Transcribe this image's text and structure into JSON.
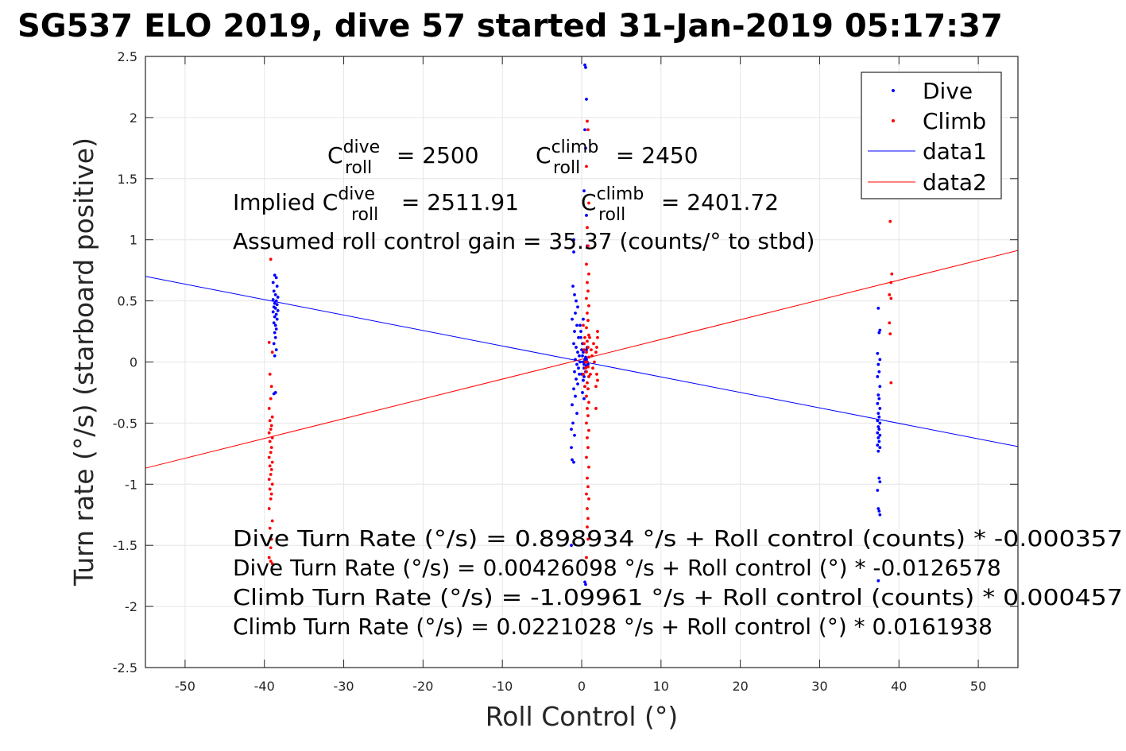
{
  "chart_data": {
    "type": "scatter",
    "title": "SG537 ELO 2019, dive 57 started 31-Jan-2019 05:17:37",
    "xlabel": "Roll Control (°)",
    "ylabel": "Turn rate (°/s) (starboard positive)",
    "xlim": [
      -55,
      55
    ],
    "ylim": [
      -2.5,
      2.5
    ],
    "xticks": [
      -50,
      -40,
      -30,
      -20,
      -10,
      0,
      10,
      20,
      30,
      40,
      50
    ],
    "yticks": [
      2.5,
      2,
      1.5,
      1,
      0.5,
      0,
      -0.5,
      -1,
      -1.5,
      -2,
      -2.5
    ],
    "grid": true,
    "legend_position": "top-right",
    "legend": [
      "Dive",
      "Climb",
      "data1",
      "data2"
    ],
    "colors": {
      "dive": "#0000ff",
      "climb": "#ff0000"
    },
    "annotations": {
      "c_dive": {
        "base": "C",
        "sup": "dive",
        "sub": "roll",
        "tail": " = 2500"
      },
      "c_climb": {
        "base": "C",
        "sup": "climb",
        "sub": "roll",
        "tail": " = 2450"
      },
      "implied_dive": {
        "prefix": "Implied C",
        "sup": "dive",
        "sub": "roll",
        "tail": " = 2511.91"
      },
      "implied_climb": {
        "base": "C",
        "sup": "climb",
        "sub": "roll",
        "tail": " = 2401.72"
      },
      "gain": "Assumed roll control gain = 35.37 (counts/° to stbd)",
      "eq1": "Dive Turn Rate (°/s) = 0.898934 °/s + Roll control (counts) * -0.000357",
      "eq2": "Dive Turn Rate (°/s) = 0.00426098 °/s + Roll control (°) * -0.0126578",
      "eq3": "Climb Turn Rate (°/s) = -1.09961 °/s + Roll control (counts) * 0.000457",
      "eq4": "Climb Turn Rate (°/s) = 0.0221028 °/s + Roll control (°) * 0.0161938"
    },
    "series": [
      {
        "name": "Dive",
        "style": "points",
        "points": [
          [
            -38.7,
            0.71
          ],
          [
            -38.5,
            0.69
          ],
          [
            -38.9,
            0.65
          ],
          [
            -38.4,
            0.62
          ],
          [
            -38.8,
            0.58
          ],
          [
            -38.6,
            0.55
          ],
          [
            -38.3,
            0.53
          ],
          [
            -38.9,
            0.51
          ],
          [
            -38.5,
            0.5
          ],
          [
            -38.7,
            0.48
          ],
          [
            -38.4,
            0.47
          ],
          [
            -38.8,
            0.45
          ],
          [
            -38.6,
            0.44
          ],
          [
            -38.3,
            0.42
          ],
          [
            -38.9,
            0.41
          ],
          [
            -38.5,
            0.39
          ],
          [
            -38.7,
            0.37
          ],
          [
            -38.4,
            0.35
          ],
          [
            -38.8,
            0.32
          ],
          [
            -38.6,
            0.3
          ],
          [
            -38.5,
            0.27
          ],
          [
            -38.7,
            0.24
          ],
          [
            -38.6,
            0.2
          ],
          [
            -38.8,
            0.15
          ],
          [
            -38.5,
            0.1
          ],
          [
            -38.7,
            0.05
          ],
          [
            -38.6,
            -0.25
          ],
          [
            -38.8,
            -0.26
          ],
          [
            -1.1,
            0.62
          ],
          [
            -0.9,
            0.55
          ],
          [
            -0.7,
            0.5
          ],
          [
            -0.5,
            0.45
          ],
          [
            -0.8,
            0.4
          ],
          [
            -1.2,
            0.35
          ],
          [
            -0.6,
            0.3
          ],
          [
            -0.9,
            0.25
          ],
          [
            -0.4,
            0.2
          ],
          [
            -1.0,
            0.15
          ],
          [
            -0.7,
            0.12
          ],
          [
            -0.5,
            0.08
          ],
          [
            -0.3,
            0.05
          ],
          [
            -0.8,
            0.02
          ],
          [
            -0.2,
            0.0
          ],
          [
            -0.6,
            -0.02
          ],
          [
            -0.4,
            -0.05
          ],
          [
            -0.9,
            -0.08
          ],
          [
            -0.3,
            -0.1
          ],
          [
            -0.7,
            -0.14
          ],
          [
            -0.5,
            -0.18
          ],
          [
            -1.0,
            -0.22
          ],
          [
            -0.8,
            -0.28
          ],
          [
            -1.2,
            -0.35
          ],
          [
            -0.6,
            -0.42
          ],
          [
            -1.1,
            -0.5
          ],
          [
            -0.9,
            -0.6
          ],
          [
            -1.3,
            -0.7
          ],
          [
            -1.2,
            -0.8
          ],
          [
            -1.0,
            -0.82
          ],
          [
            -1.3,
            -0.55
          ],
          [
            -1.0,
            0.9
          ],
          [
            -1.0,
            1.0
          ],
          [
            -1.3,
            -1.5
          ],
          [
            -0.2,
            0.3
          ],
          [
            -0.1,
            0.2
          ],
          [
            0.0,
            0.1
          ],
          [
            0.1,
            0.05
          ],
          [
            0.2,
            0.0
          ],
          [
            0.3,
            -0.05
          ],
          [
            0.0,
            -0.1
          ],
          [
            0.1,
            0.15
          ],
          [
            -0.1,
            0.25
          ],
          [
            0.2,
            0.08
          ],
          [
            0.4,
            0.02
          ],
          [
            0.3,
            -0.02
          ],
          [
            0.5,
            0.0
          ],
          [
            0.6,
            -0.03
          ],
          [
            0.5,
            0.04
          ],
          [
            0.7,
            0.0
          ],
          [
            0.8,
            -0.02
          ],
          [
            0.6,
            0.02
          ],
          [
            0.2,
            -0.15
          ],
          [
            0.4,
            -0.2
          ],
          [
            0.1,
            -0.25
          ],
          [
            0.3,
            -0.12
          ],
          [
            0.5,
            -0.08
          ],
          [
            0.6,
            0.1
          ],
          [
            0.7,
            0.12
          ],
          [
            0.2,
            0.35
          ],
          [
            0.3,
            -0.3
          ],
          [
            0.4,
            2.43
          ],
          [
            0.5,
            2.41
          ],
          [
            0.6,
            2.15
          ],
          [
            0.4,
            1.9
          ],
          [
            0.5,
            1.75
          ],
          [
            0.3,
            1.4
          ],
          [
            0.6,
            1.2
          ],
          [
            0.7,
            0.95
          ],
          [
            0.4,
            -1.8
          ],
          [
            0.5,
            -1.82
          ],
          [
            37.4,
            0.44
          ],
          [
            37.6,
            0.26
          ],
          [
            37.5,
            0.24
          ],
          [
            37.3,
            0.07
          ],
          [
            37.6,
            0.02
          ],
          [
            37.4,
            -0.02
          ],
          [
            37.5,
            -0.08
          ],
          [
            37.3,
            -0.12
          ],
          [
            37.6,
            -0.2
          ],
          [
            37.4,
            -0.27
          ],
          [
            37.5,
            -0.3
          ],
          [
            37.3,
            -0.34
          ],
          [
            37.6,
            -0.38
          ],
          [
            37.4,
            -0.42
          ],
          [
            37.5,
            -0.45
          ],
          [
            37.3,
            -0.48
          ],
          [
            37.6,
            -0.5
          ],
          [
            37.4,
            -0.53
          ],
          [
            37.5,
            -0.55
          ],
          [
            37.3,
            -0.58
          ],
          [
            37.6,
            -0.6
          ],
          [
            37.4,
            -0.62
          ],
          [
            37.5,
            -0.65
          ],
          [
            37.3,
            -0.68
          ],
          [
            37.6,
            -0.7
          ],
          [
            37.4,
            -0.73
          ],
          [
            37.5,
            -0.95
          ],
          [
            37.6,
            -0.98
          ],
          [
            37.3,
            -1.05
          ],
          [
            37.4,
            -1.2
          ],
          [
            37.5,
            -1.22
          ],
          [
            37.6,
            -1.25
          ],
          [
            37.4,
            -1.79
          ]
        ]
      },
      {
        "name": "Climb",
        "style": "points",
        "points": [
          [
            -39.2,
            0.84
          ],
          [
            -39.4,
            0.16
          ],
          [
            -39.0,
            0.08
          ],
          [
            -39.3,
            -0.1
          ],
          [
            -39.1,
            -0.2
          ],
          [
            -39.2,
            -0.3
          ],
          [
            -39.4,
            -0.38
          ],
          [
            -39.0,
            -0.45
          ],
          [
            -39.3,
            -0.48
          ],
          [
            -39.1,
            -0.52
          ],
          [
            -39.2,
            -0.55
          ],
          [
            -39.4,
            -0.58
          ],
          [
            -39.0,
            -0.62
          ],
          [
            -39.3,
            -0.65
          ],
          [
            -39.1,
            -0.7
          ],
          [
            -39.2,
            -0.74
          ],
          [
            -39.4,
            -0.78
          ],
          [
            -39.0,
            -0.82
          ],
          [
            -39.3,
            -0.85
          ],
          [
            -39.1,
            -0.88
          ],
          [
            -39.2,
            -0.92
          ],
          [
            -39.4,
            -0.96
          ],
          [
            -39.0,
            -1.0
          ],
          [
            -39.3,
            -1.04
          ],
          [
            -39.1,
            -1.08
          ],
          [
            -39.2,
            -1.12
          ],
          [
            -39.4,
            -1.2
          ],
          [
            -39.0,
            -1.3
          ],
          [
            -39.3,
            -1.36
          ],
          [
            -39.1,
            -1.45
          ],
          [
            -39.2,
            -1.52
          ],
          [
            -39.4,
            -1.6
          ],
          [
            -39.0,
            -1.65
          ],
          [
            -39.2,
            -1.63
          ],
          [
            0.7,
            1.97
          ],
          [
            0.8,
            1.9
          ],
          [
            0.6,
            1.6
          ],
          [
            0.9,
            1.3
          ],
          [
            0.7,
            1.1
          ],
          [
            0.8,
            0.95
          ],
          [
            0.6,
            0.8
          ],
          [
            0.9,
            0.72
          ],
          [
            0.7,
            0.65
          ],
          [
            0.8,
            0.58
          ],
          [
            0.6,
            0.52
          ],
          [
            0.9,
            0.46
          ],
          [
            0.7,
            0.4
          ],
          [
            0.8,
            0.34
          ],
          [
            0.6,
            0.28
          ],
          [
            0.9,
            0.22
          ],
          [
            0.7,
            0.17
          ],
          [
            0.8,
            0.12
          ],
          [
            0.6,
            0.08
          ],
          [
            0.9,
            0.04
          ],
          [
            0.7,
            0.0
          ],
          [
            0.8,
            -0.04
          ],
          [
            0.6,
            -0.08
          ],
          [
            0.9,
            -0.12
          ],
          [
            0.7,
            -0.17
          ],
          [
            0.8,
            -0.22
          ],
          [
            0.6,
            -0.28
          ],
          [
            0.9,
            -0.33
          ],
          [
            0.7,
            -0.38
          ],
          [
            0.8,
            -0.44
          ],
          [
            0.6,
            -0.5
          ],
          [
            0.9,
            -0.56
          ],
          [
            0.7,
            -0.62
          ],
          [
            0.8,
            -0.7
          ],
          [
            0.6,
            -0.78
          ],
          [
            0.9,
            -0.86
          ],
          [
            0.7,
            -0.95
          ],
          [
            0.8,
            -1.02
          ],
          [
            0.6,
            -1.08
          ],
          [
            0.9,
            -1.12
          ],
          [
            0.7,
            -1.2
          ],
          [
            0.8,
            -1.28
          ],
          [
            0.7,
            -1.35
          ],
          [
            0.8,
            -1.45
          ],
          [
            0.6,
            -1.6
          ],
          [
            0.2,
            0.3
          ],
          [
            0.4,
            0.2
          ],
          [
            0.3,
            0.1
          ],
          [
            0.5,
            0.0
          ],
          [
            0.2,
            -0.1
          ],
          [
            0.4,
            -0.2
          ],
          [
            0.3,
            0.15
          ],
          [
            0.5,
            -0.05
          ],
          [
            1.0,
            0.2
          ],
          [
            1.2,
            0.1
          ],
          [
            1.1,
            -0.1
          ],
          [
            1.3,
            0.05
          ],
          [
            1.5,
            0.15
          ],
          [
            1.4,
            -0.05
          ],
          [
            1.6,
            0.0
          ],
          [
            1.8,
            0.08
          ],
          [
            2.0,
            0.2
          ],
          [
            1.9,
            -0.1
          ],
          [
            1.8,
            -0.2
          ],
          [
            2.0,
            -0.15
          ],
          [
            1.9,
            0.12
          ],
          [
            2.0,
            0.25
          ],
          [
            1.8,
            -0.38
          ],
          [
            38.9,
            1.15
          ],
          [
            39.1,
            0.72
          ],
          [
            39.0,
            0.65
          ],
          [
            38.8,
            0.55
          ],
          [
            39.0,
            0.52
          ],
          [
            38.8,
            0.32
          ],
          [
            38.9,
            0.23
          ],
          [
            39.0,
            -0.17
          ]
        ]
      },
      {
        "name": "data1",
        "style": "line",
        "x": [
          -55,
          55
        ],
        "y": [
          0.7003,
          -0.6918
        ]
      },
      {
        "name": "data2",
        "style": "line",
        "x": [
          -55,
          55
        ],
        "y": [
          -0.8685,
          0.9127
        ]
      }
    ]
  }
}
